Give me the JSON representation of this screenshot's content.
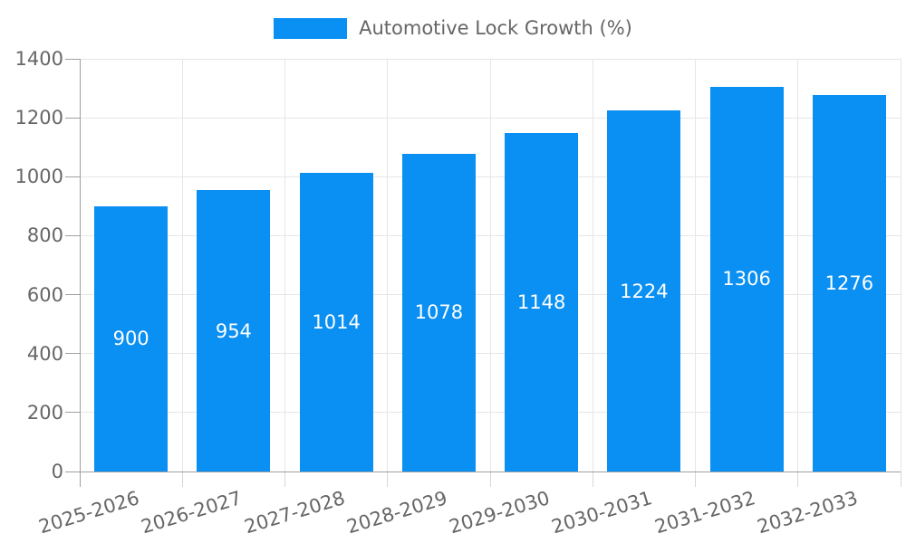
{
  "chart_data": {
    "type": "bar",
    "legend": {
      "label": "Automotive Lock Growth (%)",
      "position": "top"
    },
    "categories": [
      "2025-2026",
      "2026-2027",
      "2027-2028",
      "2028-2029",
      "2029-2030",
      "2030-2031",
      "2031-2032",
      "2032-2033"
    ],
    "series": [
      {
        "name": "Automotive Lock Growth (%)",
        "values": [
          900,
          954,
          1014,
          1078,
          1148,
          1224,
          1306,
          1276
        ]
      }
    ],
    "values": [
      900,
      954,
      1014,
      1078,
      1148,
      1224,
      1306,
      1276
    ],
    "value_labels": [
      "900",
      "954",
      "1014",
      "1078",
      "1148",
      "1224",
      "1306",
      "1276"
    ],
    "ylim": [
      0,
      1400
    ],
    "yticks": [
      0,
      200,
      400,
      600,
      800,
      1000,
      1200,
      1400
    ],
    "grid": true,
    "legend_position": "top-center",
    "colors": {
      "bar": "#0a8ff2",
      "grid": "#e6e6e6",
      "axis": "#a0a0a0",
      "x_tick_mark": "#d6d6d6",
      "tick_text": "#666666",
      "value_text": "#ffffff",
      "background": "#ffffff"
    }
  }
}
